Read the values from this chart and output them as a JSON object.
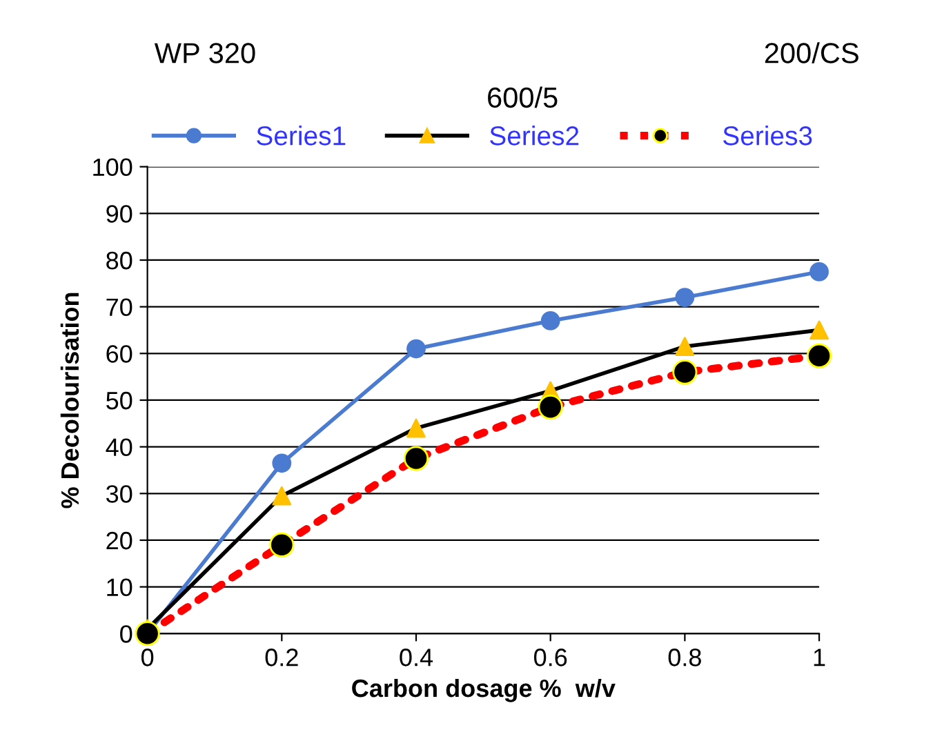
{
  "chart_data": {
    "type": "line",
    "annotations": [
      "WP 320",
      "200/CS",
      "600/5"
    ],
    "xlabel": "Carbon dosage %  w/v",
    "ylabel": "% Decolourisation",
    "x": [
      0,
      0.2,
      0.4,
      0.6,
      0.8,
      1
    ],
    "series": [
      {
        "name": "Series1",
        "color": "#4a7bd0",
        "colors": [
          "#4a7bd0",
          "#4a7bd0",
          "#4a7bd0",
          "#4a7bd0",
          "#4a7bd0",
          "#4a7bd0"
        ],
        "marker": "circle",
        "line_style": "solid",
        "values": [
          0,
          36.5,
          61,
          67,
          72,
          77.5
        ]
      },
      {
        "name": "Series2",
        "color": "#000000",
        "colors": [
          "#ffc000",
          "#ffc000",
          "#ffc000",
          "#ffc000",
          "#ffc000",
          "#ffc000"
        ],
        "marker": "triangle",
        "line_style": "solid",
        "values": [
          1,
          29.5,
          44,
          52,
          61.5,
          65
        ]
      },
      {
        "name": "Series3",
        "color": "#ff0000",
        "colors": [
          "#000000",
          "#000000",
          "#000000",
          "#000000",
          "#000000",
          "#000000"
        ],
        "marker": "circle",
        "line_style": "dotted",
        "values": [
          0,
          19,
          37.5,
          48.5,
          56,
          59.5
        ]
      }
    ],
    "xlim": [
      0,
      1
    ],
    "xticks": [
      0,
      0.2,
      0.4,
      0.6,
      0.8,
      1
    ],
    "ylim": [
      0,
      100
    ],
    "yticks": [
      0,
      10,
      20,
      30,
      40,
      50,
      60,
      70,
      80,
      90,
      100
    ],
    "grid": "y",
    "legend": "top"
  }
}
